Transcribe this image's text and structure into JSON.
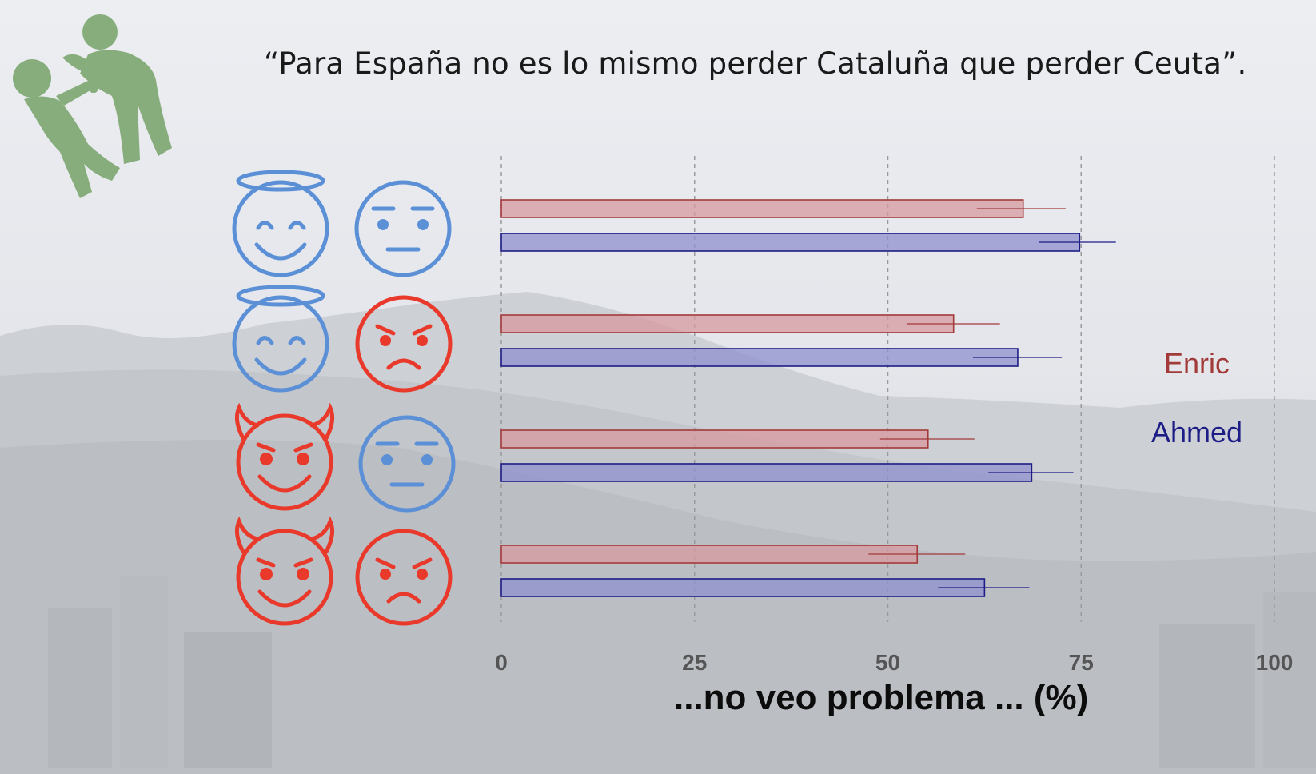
{
  "quote": "“Para España no es lo mismo perder Cataluña que perder Ceuta”.",
  "colors": {
    "enric": "#a33a3a",
    "enric_fill": "#d79a9f",
    "ahmed": "#1d1d85",
    "ahmed_fill": "#8f90cd",
    "blue_icon": "#5b8fd6",
    "red_icon": "#e8392b",
    "logo_green": "#86ad7b"
  },
  "icons": [
    {
      "row": 1,
      "left": "angel-face-icon",
      "right": "neutral-blue-face-icon"
    },
    {
      "row": 2,
      "left": "angel-face-icon",
      "right": "angry-red-face-icon"
    },
    {
      "row": 3,
      "left": "devil-face-icon",
      "right": "neutral-blue-face-icon"
    },
    {
      "row": 4,
      "left": "devil-face-icon",
      "right": "angry-red-face-icon"
    }
  ],
  "chart_data": {
    "type": "bar",
    "orientation": "horizontal",
    "xlabel": "...no veo problema ... (%)",
    "xlim": [
      0,
      100
    ],
    "xticks": [
      0,
      25,
      50,
      75,
      100
    ],
    "grid": "vertical dashed",
    "legend": "right",
    "categories": [
      "row1",
      "row2",
      "row3",
      "row4"
    ],
    "series": [
      {
        "name": "Enric",
        "values": [
          67.5,
          58.5,
          55.2,
          53.8
        ],
        "ci_low": [
          61.5,
          52.5,
          49.0,
          47.5
        ],
        "ci_high": [
          73.0,
          64.5,
          61.2,
          60.0
        ]
      },
      {
        "name": "Ahmed",
        "values": [
          74.8,
          66.8,
          68.6,
          62.5
        ],
        "ci_low": [
          69.5,
          61.0,
          63.0,
          56.5
        ],
        "ci_high": [
          79.5,
          72.5,
          74.0,
          68.3
        ]
      }
    ]
  }
}
